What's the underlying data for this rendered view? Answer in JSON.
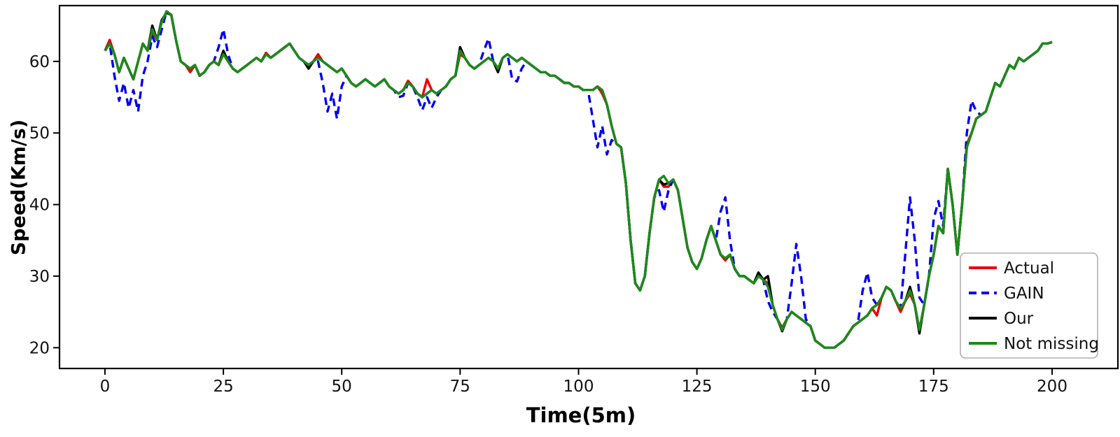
{
  "figure": {
    "background": "#ffffff"
  },
  "chart_data": {
    "type": "line",
    "title": "",
    "xlabel": "Time(5m)",
    "ylabel": "Speed(Km/s)",
    "xlim": [
      -9.6,
      213.9
    ],
    "ylim": [
      17.1,
      67.8
    ],
    "xticks": [
      0,
      25,
      50,
      75,
      100,
      125,
      150,
      175,
      200
    ],
    "yticks": [
      20,
      30,
      40,
      50,
      60
    ],
    "grid": false,
    "legend_position": "lower right",
    "x": [
      0,
      1,
      2,
      3,
      4,
      5,
      6,
      7,
      8,
      9,
      10,
      11,
      12,
      13,
      14,
      15,
      16,
      17,
      18,
      19,
      20,
      21,
      22,
      23,
      24,
      25,
      26,
      27,
      28,
      29,
      30,
      31,
      32,
      33,
      34,
      35,
      36,
      37,
      38,
      39,
      40,
      41,
      42,
      43,
      44,
      45,
      46,
      47,
      48,
      49,
      50,
      51,
      52,
      53,
      54,
      55,
      56,
      57,
      58,
      59,
      60,
      61,
      62,
      63,
      64,
      65,
      66,
      67,
      68,
      69,
      70,
      71,
      72,
      73,
      74,
      75,
      76,
      77,
      78,
      79,
      80,
      81,
      82,
      83,
      84,
      85,
      86,
      87,
      88,
      89,
      90,
      91,
      92,
      93,
      94,
      95,
      96,
      97,
      98,
      99,
      100,
      101,
      102,
      103,
      104,
      105,
      106,
      107,
      108,
      109,
      110,
      111,
      112,
      113,
      114,
      115,
      116,
      117,
      118,
      119,
      120,
      121,
      122,
      123,
      124,
      125,
      126,
      127,
      128,
      129,
      130,
      131,
      132,
      133,
      134,
      135,
      136,
      137,
      138,
      139,
      140,
      141,
      142,
      143,
      144,
      145,
      146,
      147,
      148,
      149,
      150,
      151,
      152,
      153,
      154,
      155,
      156,
      157,
      158,
      159,
      160,
      161,
      162,
      163,
      164,
      165,
      166,
      167,
      168,
      169,
      170,
      171,
      172,
      173,
      174,
      175,
      176,
      177,
      178,
      179,
      180,
      181,
      182,
      183,
      184,
      185,
      186,
      187,
      188,
      189,
      190,
      191,
      192,
      193,
      194,
      195,
      196,
      197,
      198,
      199,
      200
    ],
    "series": [
      {
        "name": "Actual",
        "color": "#ee0000",
        "style": "solid",
        "values": [
          61.5,
          63,
          61,
          58.5,
          60.5,
          59,
          57.5,
          60,
          62.5,
          61.5,
          64,
          63,
          65.5,
          67,
          66.5,
          63,
          60,
          59.5,
          58.5,
          59.5,
          58,
          58.5,
          59.5,
          60,
          59.5,
          61,
          60,
          59,
          58.5,
          59,
          59.5,
          60,
          60.5,
          60,
          61.2,
          60.5,
          61,
          61.5,
          62,
          62.5,
          61.5,
          60.5,
          60,
          59.5,
          60,
          61,
          60,
          59.5,
          59,
          58.5,
          59,
          58,
          57,
          56.5,
          57,
          57.5,
          57,
          56.5,
          57,
          57.5,
          56.5,
          56,
          55.5,
          56,
          57.3,
          56.5,
          55.5,
          55,
          57.5,
          56,
          55.5,
          56,
          56.5,
          57.5,
          58,
          61,
          60.5,
          59.5,
          59,
          59.5,
          60,
          60.5,
          60,
          59,
          60.5,
          61,
          60.5,
          60,
          60.5,
          60,
          59.5,
          59,
          58.5,
          58.5,
          58,
          58,
          57.5,
          57,
          57,
          56.5,
          56.5,
          56,
          56,
          56,
          56.5,
          55.5,
          54,
          51,
          48.5,
          48,
          43,
          35,
          29,
          28,
          30,
          36,
          41,
          43.5,
          42.5,
          42.5,
          43.5,
          42,
          38,
          34,
          32,
          31,
          32.5,
          35,
          37,
          35,
          33,
          32.2,
          33,
          31,
          30,
          30,
          29.5,
          29,
          30,
          29.5,
          29,
          26,
          24,
          22.8,
          24,
          25,
          24.5,
          24,
          23.5,
          23,
          21,
          20.5,
          20,
          20,
          20,
          20.5,
          21,
          22,
          23,
          23.5,
          24,
          24.5,
          25.5,
          24.5,
          27,
          28.5,
          28,
          26.5,
          25,
          26.5,
          27.5,
          26,
          22.5,
          26,
          30,
          33,
          37,
          36,
          45,
          40,
          33,
          40,
          48.5,
          50,
          52,
          52.5,
          53,
          55,
          57,
          56.5,
          58,
          59.5,
          59,
          60.5,
          60,
          60.5,
          61,
          61.5,
          62.5,
          62.5,
          62.7
        ]
      },
      {
        "name": "GAIN",
        "color": "#0000ee",
        "style": "dashed",
        "values": [
          61.5,
          62.5,
          58,
          54.5,
          57,
          53.5,
          56,
          53,
          58,
          60,
          63.5,
          62,
          64.5,
          67,
          66.5,
          63,
          60,
          59.5,
          59,
          59.5,
          58,
          58.5,
          59.5,
          60,
          62,
          64.5,
          61,
          59,
          58.5,
          59,
          59.5,
          60,
          60.5,
          60,
          61,
          60.5,
          61,
          61.5,
          62,
          62.5,
          61.5,
          60.5,
          60,
          59.5,
          60,
          60,
          57,
          53,
          55.5,
          52,
          56.5,
          58,
          57,
          56.5,
          57,
          57.5,
          57,
          56.5,
          57,
          57.5,
          56.5,
          56,
          55,
          55.2,
          57,
          56.5,
          55,
          53.2,
          55,
          53.5,
          55,
          56,
          56.5,
          57.5,
          58,
          61.5,
          60.5,
          59.5,
          59,
          59.5,
          61.5,
          63.2,
          60,
          59,
          60.5,
          61,
          57.5,
          57.2,
          59,
          60,
          59.5,
          59,
          58.5,
          58.5,
          58,
          58,
          57.5,
          57,
          57,
          56.5,
          56.5,
          56,
          56,
          52,
          48,
          51,
          47,
          49,
          48.5,
          48,
          43,
          35,
          29,
          28,
          30,
          36,
          41,
          42,
          39,
          42,
          43.5,
          42,
          38,
          34,
          32,
          31,
          32.5,
          35,
          37,
          35,
          39,
          41,
          35,
          31,
          30,
          30,
          29.5,
          29,
          30,
          29.5,
          26.5,
          25,
          24,
          22.5,
          24,
          29,
          34.5,
          30,
          24,
          23,
          21,
          20.5,
          20,
          20,
          20,
          20.5,
          21,
          22,
          23,
          23.5,
          28,
          30.5,
          27,
          26,
          27,
          28.5,
          28,
          26.5,
          25.5,
          33,
          41,
          35,
          27,
          26,
          30,
          38,
          40.5,
          37,
          45,
          40,
          33,
          40,
          50,
          54.5,
          53,
          52.5,
          53,
          55,
          57,
          56.5,
          58,
          59.5,
          59,
          60.5,
          60,
          60.5,
          61,
          61.5,
          62.5,
          62.5,
          62.7
        ]
      },
      {
        "name": "Our",
        "color": "#000000",
        "style": "solid",
        "values": [
          61.5,
          62.5,
          61,
          58.5,
          60.5,
          59,
          57.5,
          60,
          62.5,
          61.5,
          65,
          63,
          65.8,
          66.8,
          66.5,
          63,
          60,
          59.5,
          59,
          59.5,
          58,
          58.5,
          59.5,
          60,
          59.5,
          61.5,
          60,
          59,
          58.5,
          59,
          59.5,
          60,
          60.5,
          60,
          61,
          60.5,
          61,
          61.5,
          62,
          62.5,
          61.5,
          60.5,
          60,
          59,
          60,
          60.5,
          60,
          59.5,
          59,
          58.5,
          59,
          58,
          57,
          56.5,
          57,
          57.5,
          57,
          56.5,
          57,
          57.5,
          56.5,
          56,
          55.5,
          56,
          57,
          56.5,
          55.5,
          55,
          55.5,
          56,
          55.5,
          56,
          56.5,
          57.5,
          58,
          62,
          60.5,
          59.5,
          59,
          59.5,
          60,
          60.5,
          60,
          58.5,
          60.5,
          61,
          60.5,
          60,
          60.5,
          60,
          59.5,
          59,
          58.5,
          58.5,
          58,
          58,
          57.5,
          57,
          57,
          56.5,
          56.5,
          56,
          56,
          56,
          56.5,
          56,
          54,
          51,
          48.5,
          48,
          43,
          35,
          29,
          28,
          30,
          36,
          41,
          43.5,
          42.8,
          43,
          43.5,
          42,
          38,
          34,
          32,
          31,
          32.5,
          35,
          37,
          35,
          33,
          32.5,
          33,
          31,
          30,
          30,
          29.5,
          29,
          30.5,
          29.5,
          30,
          26,
          24,
          22.3,
          24,
          25,
          24.5,
          24,
          23.5,
          23,
          21,
          20.5,
          20,
          20,
          20,
          20.5,
          21,
          22,
          23,
          23.5,
          24,
          24.5,
          25.5,
          26,
          27,
          28.5,
          28,
          26.5,
          25.5,
          26.5,
          28.5,
          26,
          22,
          26,
          30,
          33,
          37,
          36,
          45,
          40,
          33,
          40,
          48,
          50,
          52,
          52.5,
          53,
          55,
          57,
          56.5,
          58,
          59.5,
          59,
          60.5,
          60,
          60.5,
          61,
          61.5,
          62.5,
          62.5,
          62.7
        ]
      },
      {
        "name": "Not missing",
        "color": "#1a8c1a",
        "style": "solid",
        "values": [
          61.5,
          62.5,
          61,
          58.5,
          60.5,
          59,
          57.5,
          60,
          62.5,
          61.5,
          64.5,
          63,
          65.5,
          67,
          66.5,
          63,
          60,
          59.5,
          59,
          59.5,
          58,
          58.5,
          59.5,
          60,
          59.5,
          61,
          60,
          59,
          58.5,
          59,
          59.5,
          60,
          60.5,
          60,
          61,
          60.5,
          61,
          61.5,
          62,
          62.5,
          61.5,
          60.5,
          60,
          59.5,
          60,
          60.5,
          60,
          59.5,
          59,
          58.5,
          59,
          58,
          57,
          56.5,
          57,
          57.5,
          57,
          56.5,
          57,
          57.5,
          56.5,
          56,
          55.5,
          56,
          57,
          56.5,
          55.5,
          55,
          55.5,
          56,
          55.5,
          56,
          56.5,
          57.5,
          58,
          61.5,
          60.5,
          59.5,
          59,
          59.5,
          60,
          60.5,
          60,
          59,
          60.5,
          61,
          60.5,
          60,
          60.5,
          60,
          59.5,
          59,
          58.5,
          58.5,
          58,
          58,
          57.5,
          57,
          57,
          56.5,
          56.5,
          56,
          56,
          56,
          56.5,
          56,
          54,
          51,
          48.5,
          48,
          43,
          35,
          29,
          28,
          30,
          36,
          41,
          43.5,
          44,
          43,
          43.5,
          42,
          38,
          34,
          32,
          31,
          32.5,
          35,
          37,
          35,
          33,
          32.5,
          33,
          31,
          30,
          30,
          29.5,
          29,
          30,
          29.5,
          28.5,
          26,
          24,
          22.5,
          24,
          25,
          24.5,
          24,
          23.5,
          23,
          21,
          20.5,
          20,
          20,
          20,
          20.5,
          21,
          22,
          23,
          23.5,
          24,
          24.5,
          25.5,
          26,
          27,
          28.5,
          28,
          26.5,
          25.5,
          26.5,
          28,
          26,
          22.5,
          26,
          30,
          33,
          37,
          36,
          45,
          40,
          33,
          40,
          48,
          50,
          52,
          52.5,
          53,
          55,
          57,
          56.5,
          58,
          59.5,
          59,
          60.5,
          60,
          60.5,
          61,
          61.5,
          62.5,
          62.5,
          62.7
        ]
      }
    ]
  }
}
